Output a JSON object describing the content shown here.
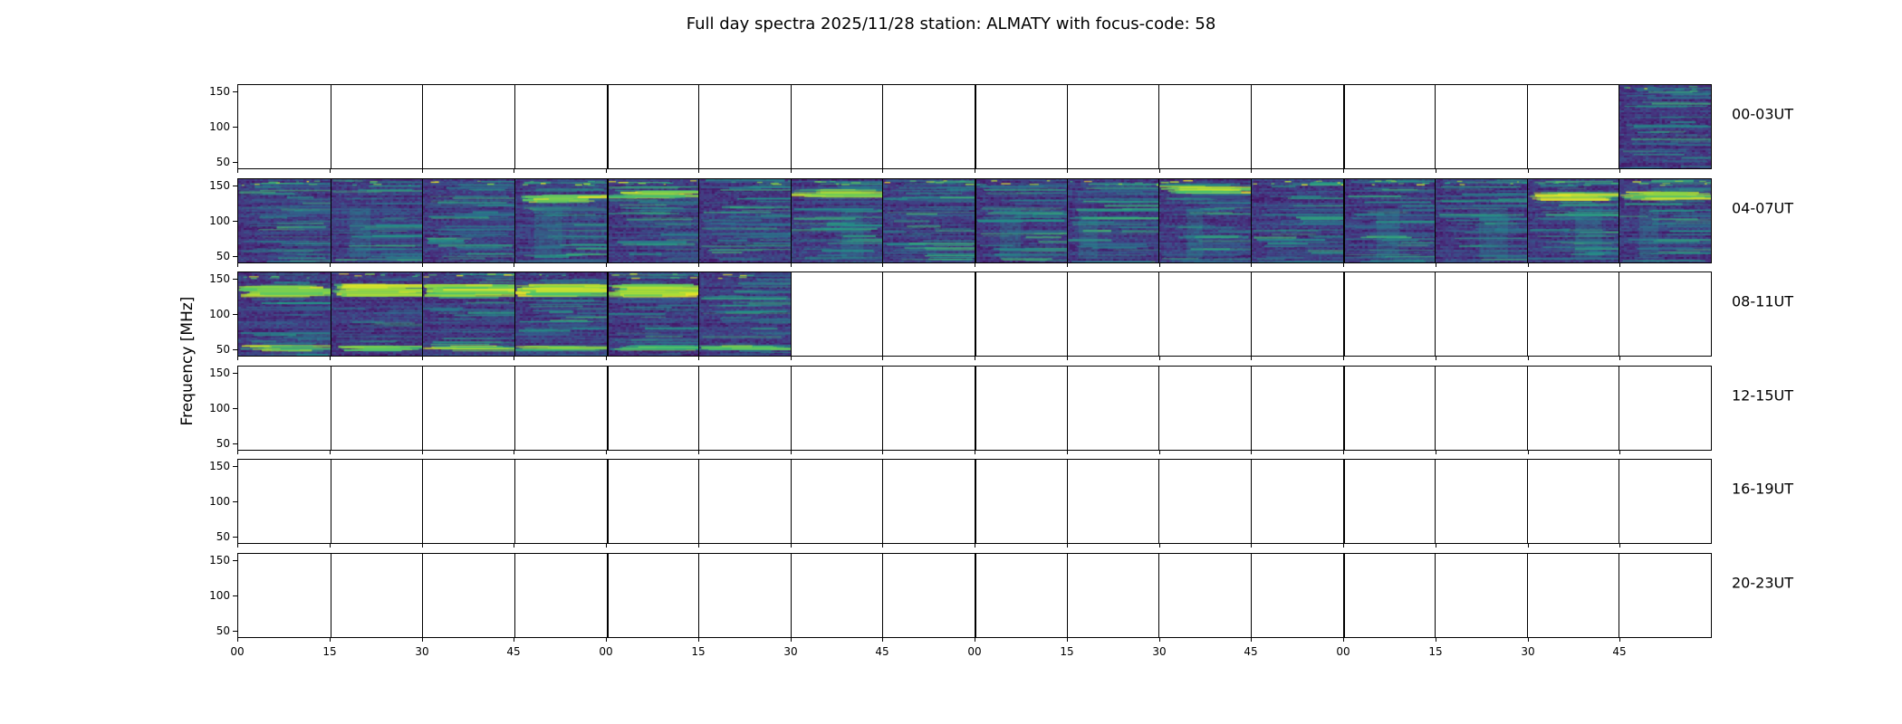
{
  "chart_data": {
    "type": "heatmap",
    "title": "Full day spectra 2025/11/28 station: ALMATY with focus-code: 58",
    "ylabel": "Frequency [MHz]",
    "y_ticks": [
      "150",
      "100",
      "50"
    ],
    "ylim": [
      40,
      160
    ],
    "x_tick_labels": [
      "00",
      "15",
      "30",
      "45",
      "00",
      "15",
      "30",
      "45",
      "00",
      "15",
      "30",
      "45",
      "00",
      "15",
      "30",
      "45"
    ],
    "segments_per_row": 16,
    "minutes_per_segment": 15,
    "hours_per_row": 4,
    "colormap": "viridis",
    "palette": [
      "#440154",
      "#46327e",
      "#365c8d",
      "#277f8e",
      "#1fa187",
      "#4ac16d",
      "#a0da39",
      "#fde725"
    ],
    "frame_color": "#000000",
    "background_color": "#ffffff",
    "rows": [
      {
        "label": "00-03UT",
        "filled_segments": [
          15
        ],
        "style": "moderate"
      },
      {
        "label": "04-07UT",
        "filled_segments": [
          0,
          1,
          2,
          3,
          4,
          5,
          6,
          7,
          8,
          9,
          10,
          11,
          12,
          13,
          14,
          15
        ],
        "style": "active"
      },
      {
        "label": "08-11UT",
        "filled_segments": [
          0,
          1,
          2,
          3,
          4,
          5
        ],
        "style": "burst"
      },
      {
        "label": "12-15UT",
        "filled_segments": [],
        "style": "empty"
      },
      {
        "label": "16-19UT",
        "filled_segments": [],
        "style": "empty"
      },
      {
        "label": "20-23UT",
        "filled_segments": [],
        "style": "empty"
      }
    ]
  }
}
